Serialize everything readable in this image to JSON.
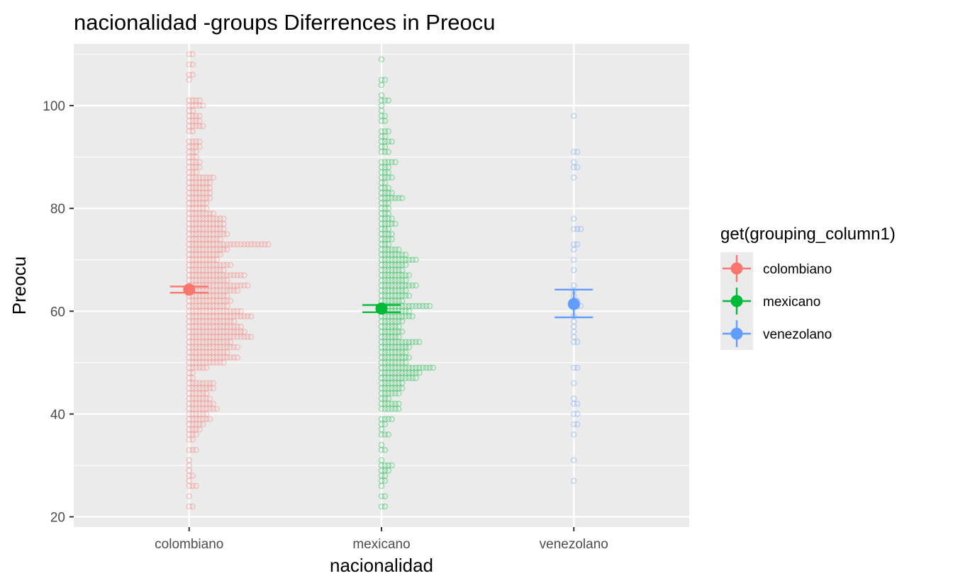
{
  "chart_data": {
    "type": "scatter",
    "subtype": "dotplot-with-mean-and-error-bars",
    "title": "nacionalidad -groups Diferrences in  Preocu",
    "xlabel": "nacionalidad",
    "ylabel": "Preocu",
    "categories": [
      "colombiano",
      "mexicano",
      "venezolano"
    ],
    "ylim": [
      18,
      112
    ],
    "yticks": [
      20,
      40,
      60,
      80,
      100
    ],
    "grid": true,
    "background": "#ebebeb",
    "legend": {
      "title": "get(grouping_column1)",
      "position": "right",
      "entries": [
        "colombiano",
        "mexicano",
        "venezolano"
      ]
    },
    "series": [
      {
        "name": "colombiano",
        "color": "#f8766d",
        "mean": 64.2,
        "ci": [
          63.6,
          64.8
        ],
        "dot_counts": [
          [
            110,
            2
          ],
          [
            108,
            2
          ],
          [
            106,
            2
          ],
          [
            105,
            1
          ],
          [
            101,
            4
          ],
          [
            100,
            5
          ],
          [
            99,
            2
          ],
          [
            98,
            4
          ],
          [
            97,
            4
          ],
          [
            96,
            5
          ],
          [
            95,
            2
          ],
          [
            93,
            4
          ],
          [
            92,
            4
          ],
          [
            91,
            3
          ],
          [
            90,
            3
          ],
          [
            89,
            4
          ],
          [
            88,
            4
          ],
          [
            87,
            3
          ],
          [
            86,
            8
          ],
          [
            85,
            7
          ],
          [
            84,
            7
          ],
          [
            83,
            7
          ],
          [
            82,
            7
          ],
          [
            81,
            6
          ],
          [
            80,
            6
          ],
          [
            79,
            8
          ],
          [
            78,
            11
          ],
          [
            77,
            11
          ],
          [
            76,
            11
          ],
          [
            75,
            12
          ],
          [
            74,
            10
          ],
          [
            73,
            24
          ],
          [
            72,
            12
          ],
          [
            71,
            10
          ],
          [
            70,
            9
          ],
          [
            69,
            13
          ],
          [
            68,
            11
          ],
          [
            67,
            17
          ],
          [
            66,
            12
          ],
          [
            65,
            18
          ],
          [
            64,
            15
          ],
          [
            63,
            12
          ],
          [
            62,
            13
          ],
          [
            61,
            12
          ],
          [
            60,
            16
          ],
          [
            59,
            19
          ],
          [
            58,
            14
          ],
          [
            57,
            16
          ],
          [
            56,
            17
          ],
          [
            55,
            19
          ],
          [
            54,
            13
          ],
          [
            53,
            15
          ],
          [
            52,
            12
          ],
          [
            51,
            15
          ],
          [
            50,
            11
          ],
          [
            49,
            6
          ],
          [
            48,
            2
          ],
          [
            47,
            2
          ],
          [
            46,
            8
          ],
          [
            45,
            8
          ],
          [
            44,
            6
          ],
          [
            43,
            7
          ],
          [
            42,
            8
          ],
          [
            41,
            9
          ],
          [
            40,
            6
          ],
          [
            39,
            7
          ],
          [
            38,
            5
          ],
          [
            37,
            4
          ],
          [
            36,
            3
          ],
          [
            35,
            2
          ],
          [
            33,
            3
          ],
          [
            31,
            1
          ],
          [
            30,
            1
          ],
          [
            29,
            1
          ],
          [
            28,
            2
          ],
          [
            27,
            1
          ],
          [
            26,
            3
          ],
          [
            24,
            1
          ],
          [
            22,
            2
          ]
        ]
      },
      {
        "name": "mexicano",
        "color": "#00ba38",
        "mean": 60.5,
        "ci": [
          59.8,
          61.2
        ],
        "dot_counts": [
          [
            109,
            1
          ],
          [
            105,
            2
          ],
          [
            104,
            1
          ],
          [
            102,
            1
          ],
          [
            101,
            3
          ],
          [
            100,
            1
          ],
          [
            99,
            1
          ],
          [
            98,
            2
          ],
          [
            97,
            2
          ],
          [
            95,
            3
          ],
          [
            94,
            2
          ],
          [
            93,
            4
          ],
          [
            92,
            2
          ],
          [
            91,
            3
          ],
          [
            89,
            5
          ],
          [
            88,
            3
          ],
          [
            87,
            3
          ],
          [
            86,
            4
          ],
          [
            85,
            2
          ],
          [
            84,
            3
          ],
          [
            83,
            4
          ],
          [
            82,
            7
          ],
          [
            81,
            3
          ],
          [
            80,
            3
          ],
          [
            79,
            3
          ],
          [
            78,
            4
          ],
          [
            77,
            5
          ],
          [
            76,
            3
          ],
          [
            75,
            4
          ],
          [
            74,
            4
          ],
          [
            73,
            3
          ],
          [
            72,
            6
          ],
          [
            71,
            8
          ],
          [
            70,
            11
          ],
          [
            69,
            8
          ],
          [
            68,
            7
          ],
          [
            67,
            9
          ],
          [
            66,
            8
          ],
          [
            65,
            11
          ],
          [
            64,
            8
          ],
          [
            63,
            9
          ],
          [
            62,
            7
          ],
          [
            61,
            15
          ],
          [
            60,
            9
          ],
          [
            59,
            10
          ],
          [
            58,
            7
          ],
          [
            57,
            6
          ],
          [
            56,
            7
          ],
          [
            55,
            6
          ],
          [
            54,
            12
          ],
          [
            53,
            9
          ],
          [
            52,
            8
          ],
          [
            51,
            9
          ],
          [
            50,
            8
          ],
          [
            49,
            16
          ],
          [
            48,
            12
          ],
          [
            47,
            11
          ],
          [
            46,
            7
          ],
          [
            45,
            7
          ],
          [
            44,
            6
          ],
          [
            43,
            3
          ],
          [
            42,
            6
          ],
          [
            41,
            6
          ],
          [
            39,
            4
          ],
          [
            38,
            2
          ],
          [
            37,
            1
          ],
          [
            36,
            3
          ],
          [
            34,
            1
          ],
          [
            33,
            2
          ],
          [
            31,
            1
          ],
          [
            30,
            4
          ],
          [
            29,
            3
          ],
          [
            28,
            2
          ],
          [
            27,
            2
          ],
          [
            26,
            1
          ],
          [
            24,
            2
          ],
          [
            22,
            2
          ]
        ]
      },
      {
        "name": "venezolano",
        "color": "#619cff",
        "mean": 61.4,
        "ci": [
          58.8,
          64.2
        ],
        "dot_counts": [
          [
            98,
            1
          ],
          [
            91,
            2
          ],
          [
            89,
            1
          ],
          [
            88,
            2
          ],
          [
            86,
            1
          ],
          [
            78,
            1
          ],
          [
            76,
            3
          ],
          [
            73,
            2
          ],
          [
            72,
            1
          ],
          [
            70,
            1
          ],
          [
            68,
            1
          ],
          [
            65,
            1
          ],
          [
            64,
            1
          ],
          [
            63,
            1
          ],
          [
            62,
            2
          ],
          [
            61,
            3
          ],
          [
            59,
            1
          ],
          [
            58,
            1
          ],
          [
            57,
            1
          ],
          [
            56,
            1
          ],
          [
            55,
            1
          ],
          [
            54,
            2
          ],
          [
            49,
            2
          ],
          [
            46,
            1
          ],
          [
            43,
            1
          ],
          [
            42,
            2
          ],
          [
            40,
            2
          ],
          [
            38,
            2
          ],
          [
            36,
            1
          ],
          [
            31,
            1
          ],
          [
            27,
            1
          ]
        ]
      }
    ]
  }
}
